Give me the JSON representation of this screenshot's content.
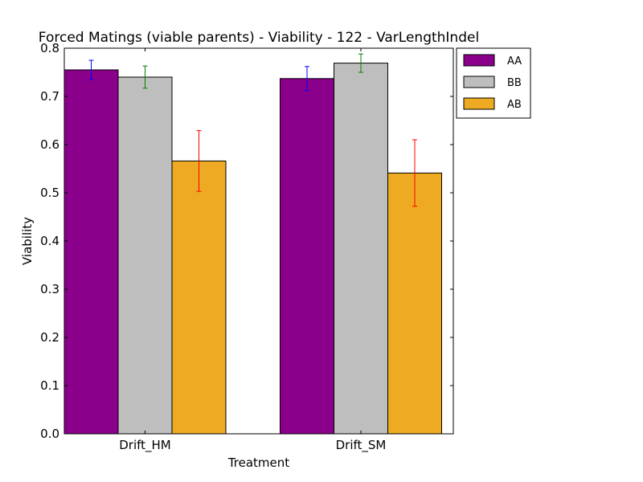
{
  "chart_data": {
    "type": "bar",
    "title": "Forced Matings (viable parents) - Viability - 122 - VarLengthIndel",
    "xlabel": "Treatment",
    "ylabel": "Viability",
    "categories": [
      "Drift_HM",
      "Drift_SM"
    ],
    "ylim": [
      0.0,
      0.8
    ],
    "yticks": [
      "0.0",
      "0.1",
      "0.2",
      "0.3",
      "0.4",
      "0.5",
      "0.6",
      "0.7",
      "0.8"
    ],
    "grid": false,
    "legend_position": "outside-top-right",
    "series": [
      {
        "name": "AA",
        "color": "#8b008b",
        "error_color": "#0000ff",
        "values": [
          0.755,
          0.737
        ],
        "errors": [
          0.02,
          0.025
        ]
      },
      {
        "name": "BB",
        "color": "#bebebe",
        "error_color": "#008000",
        "values": [
          0.74,
          0.769
        ],
        "errors": [
          0.023,
          0.019
        ]
      },
      {
        "name": "AB",
        "color": "#edaa22",
        "error_color": "#ff0000",
        "values": [
          0.566,
          0.541
        ],
        "errors": [
          0.063,
          0.069
        ]
      }
    ]
  }
}
